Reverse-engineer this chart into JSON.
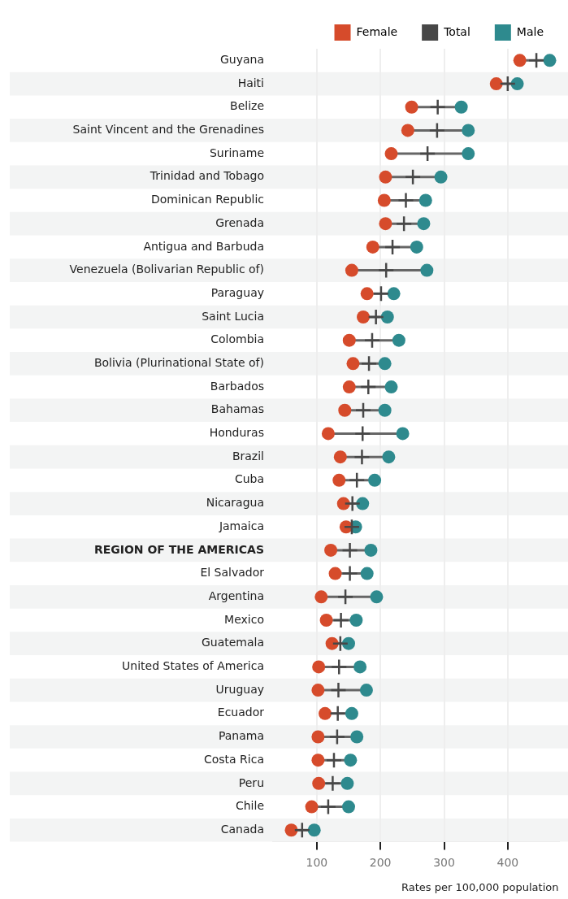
{
  "chart_data": {
    "type": "scatter",
    "xlabel": "Rates per 100,000 population",
    "categories": [
      "Guyana",
      "Haiti",
      "Belize",
      "Saint Vincent and the Grenadines",
      "Suriname",
      "Trinidad and Tobago",
      "Dominican Republic",
      "Grenada",
      "Antigua and Barbuda",
      "Venezuela (Bolivarian Republic of)",
      "Paraguay",
      "Saint Lucia",
      "Colombia",
      "Bolivia (Plurinational State of)",
      "Barbados",
      "Bahamas",
      "Honduras",
      "Brazil",
      "Cuba",
      "Nicaragua",
      "Jamaica",
      "REGION OF THE AMERICAS",
      "El Salvador",
      "Argentina",
      "Mexico",
      "Guatemala",
      "United States of America",
      "Uruguay",
      "Ecuador",
      "Panama",
      "Costa Rica",
      "Peru",
      "Chile",
      "Canada"
    ],
    "series": [
      {
        "name": "Female",
        "color": "#d64b2b",
        "values": [
          419,
          382,
          249,
          243,
          217,
          208,
          206,
          208,
          188,
          155,
          179,
          173,
          151,
          157,
          151,
          144,
          118,
          137,
          135,
          142,
          146,
          122,
          129,
          107,
          115,
          124,
          103,
          102,
          113,
          102,
          102,
          103,
          92,
          60
        ]
      },
      {
        "name": "Total",
        "color": "#474747",
        "marker": "cross",
        "values": [
          445,
          400,
          290,
          289,
          274,
          251,
          240,
          237,
          219,
          209,
          201,
          193,
          187,
          182,
          181,
          173,
          172,
          171,
          163,
          156,
          155,
          152,
          152,
          145,
          138,
          137,
          135,
          134,
          133,
          132,
          127,
          125,
          118,
          77
        ]
      },
      {
        "name": "Male",
        "color": "#2e8a8e",
        "values": [
          466,
          415,
          327,
          338,
          338,
          295,
          271,
          268,
          257,
          273,
          221,
          211,
          229,
          207,
          217,
          207,
          235,
          213,
          191,
          172,
          161,
          185,
          179,
          194,
          162,
          150,
          168,
          178,
          155,
          163,
          153,
          148,
          150,
          96
        ]
      }
    ],
    "xlim": [
      30,
      480
    ],
    "xticks": [
      100,
      200,
      300,
      400
    ],
    "grid": "x",
    "legend": "top",
    "marker": "circle",
    "orientation": "horizontal"
  }
}
